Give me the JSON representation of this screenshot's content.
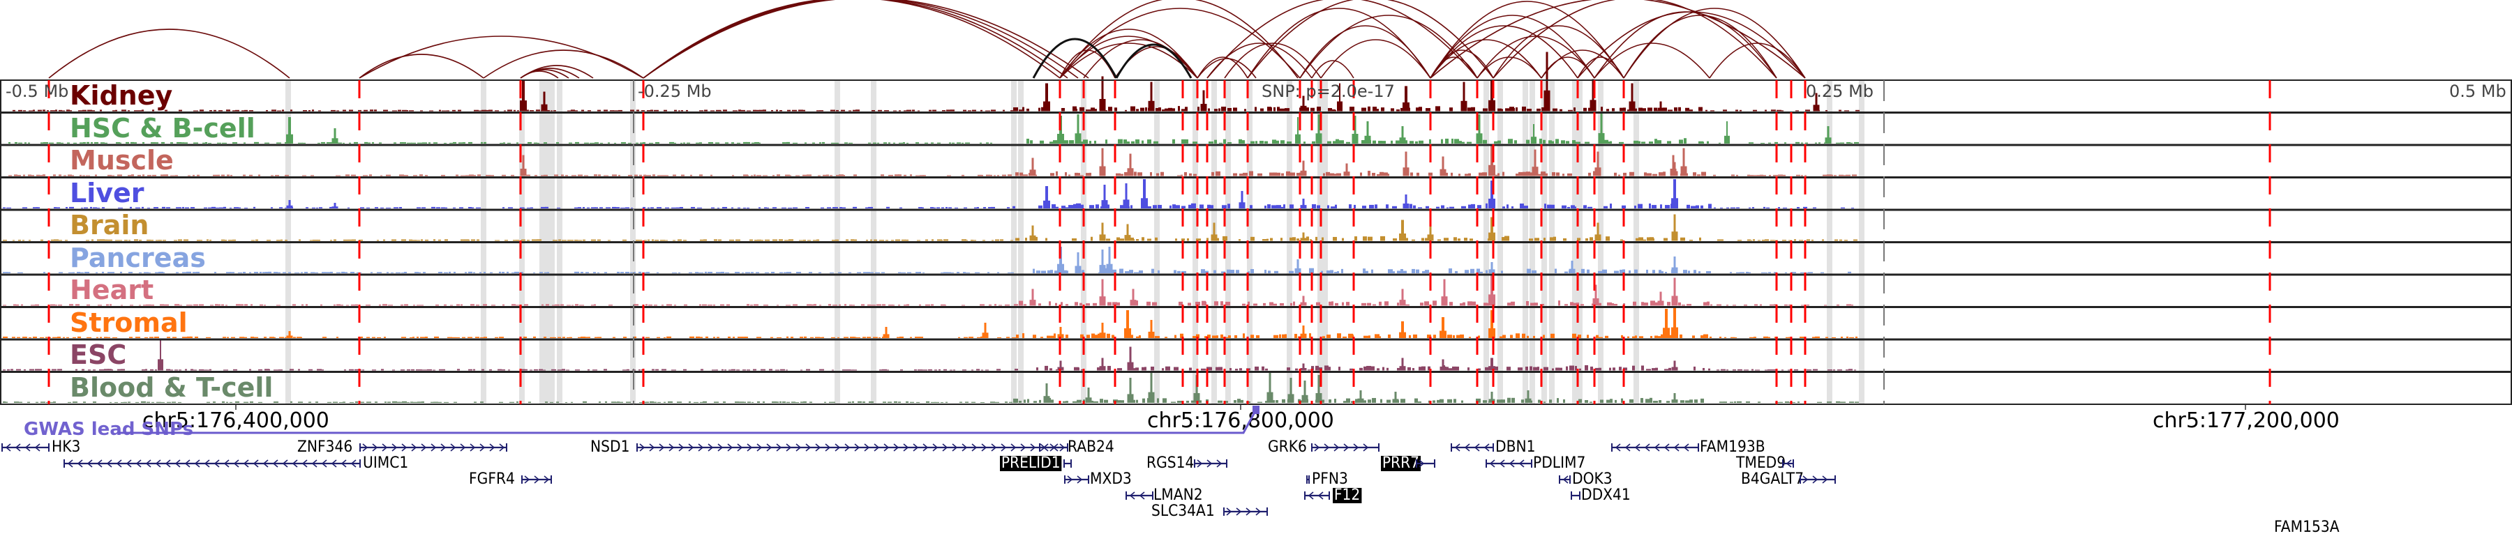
{
  "colors": {
    "kidney": "#6b0000",
    "hsc": "#55a05a",
    "muscle": "#c3665d",
    "liver": "#4f4fe0",
    "brain": "#c38f30",
    "pancreas": "#86a4e0",
    "heart": "#d47080",
    "stromal": "#ff7410",
    "esc": "#8b4565",
    "blood": "#6a8a6a",
    "arc": "#6b0a0a",
    "arc_highlight": "#111111",
    "red_dash": "#ff0000",
    "snp_shade": "#e2e2e2",
    "gene": "#1f1f6e",
    "gwas": "#6a5acd"
  },
  "tracks": [
    {
      "label": "Kidney",
      "color_key": "kidney"
    },
    {
      "label": "HSC & B-cell",
      "color_key": "hsc"
    },
    {
      "label": "Muscle",
      "color_key": "muscle"
    },
    {
      "label": "Liver",
      "color_key": "liver"
    },
    {
      "label": "Brain",
      "color_key": "brain"
    },
    {
      "label": "Pancreas",
      "color_key": "pancreas"
    },
    {
      "label": "Heart",
      "color_key": "heart"
    },
    {
      "label": "Stromal",
      "color_key": "stromal"
    },
    {
      "label": "ESC",
      "color_key": "esc"
    },
    {
      "label": "Blood & T-cell",
      "color_key": "blood"
    }
  ],
  "distance_labels": {
    "minus_half": "-0.5 Mb",
    "minus_quarter": "-0.25 Mb",
    "snp": "SNP: p=2.0e-17",
    "plus_quarter": "0.25 Mb",
    "plus_half": "0.5 Mb"
  },
  "coordinates": {
    "c1": "chr5:176,400,000",
    "c2": "chr5:176,800,000",
    "c3": "chr5:177,200,000"
  },
  "gwas": {
    "label": "GWAS lead SNPs"
  },
  "genes": [
    {
      "name": "HK3",
      "strand": "-",
      "highlight": false
    },
    {
      "name": "ZNF346",
      "strand": "+",
      "highlight": false
    },
    {
      "name": "UIMC1",
      "strand": "-",
      "highlight": false
    },
    {
      "name": "FGFR4",
      "strand": "+",
      "highlight": false
    },
    {
      "name": "NSD1",
      "strand": "+",
      "highlight": false
    },
    {
      "name": "RAB24",
      "strand": "-",
      "highlight": false
    },
    {
      "name": "PRELID1",
      "strand": "+",
      "highlight": true
    },
    {
      "name": "MXD3",
      "strand": "+",
      "highlight": false
    },
    {
      "name": "RGS14",
      "strand": "+",
      "highlight": false
    },
    {
      "name": "LMAN2",
      "strand": "-",
      "highlight": false
    },
    {
      "name": "SLC34A1",
      "strand": "+",
      "highlight": false
    },
    {
      "name": "GRK6",
      "strand": "+",
      "highlight": false
    },
    {
      "name": "PRR7",
      "strand": "+",
      "highlight": true
    },
    {
      "name": "PFN3",
      "strand": "+",
      "highlight": false
    },
    {
      "name": "F12",
      "strand": "-",
      "highlight": true
    },
    {
      "name": "DBN1",
      "strand": "-",
      "highlight": false
    },
    {
      "name": "PDLIM7",
      "strand": "-",
      "highlight": false
    },
    {
      "name": "DOK3",
      "strand": "-",
      "highlight": false
    },
    {
      "name": "DDX41",
      "strand": "-",
      "highlight": false
    },
    {
      "name": "FAM193B",
      "strand": "-",
      "highlight": false
    },
    {
      "name": "TMED9",
      "strand": "-",
      "highlight": false
    },
    {
      "name": "B4GALT7",
      "strand": "+",
      "highlight": false
    },
    {
      "name": "FAM153A",
      "strand": "-",
      "highlight": false
    }
  ]
}
